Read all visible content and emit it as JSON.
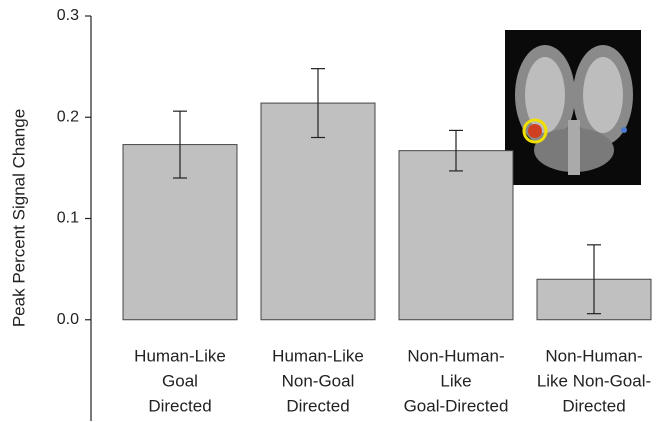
{
  "chart_data": {
    "type": "bar",
    "y_label": "Peak Percent Signal Change",
    "categories": [
      [
        "Human-Like",
        "Goal",
        "Directed"
      ],
      [
        "Human-Like",
        "Non-Goal",
        "Directed"
      ],
      [
        "Non-Human-",
        "Like",
        "Goal-Directed"
      ],
      [
        "Non-Human-",
        "Like Non-Goal-",
        "Directed"
      ]
    ],
    "values": [
      0.173,
      0.214,
      0.167,
      0.04
    ],
    "errors": [
      0.033,
      0.034,
      0.02,
      0.034
    ],
    "color": "#c0c0c0",
    "ylim": [
      -0.1,
      0.3
    ],
    "yticks": [
      {
        "value": 0,
        "label": "0.0"
      },
      0.1,
      0.2,
      0.3
    ]
  }
}
